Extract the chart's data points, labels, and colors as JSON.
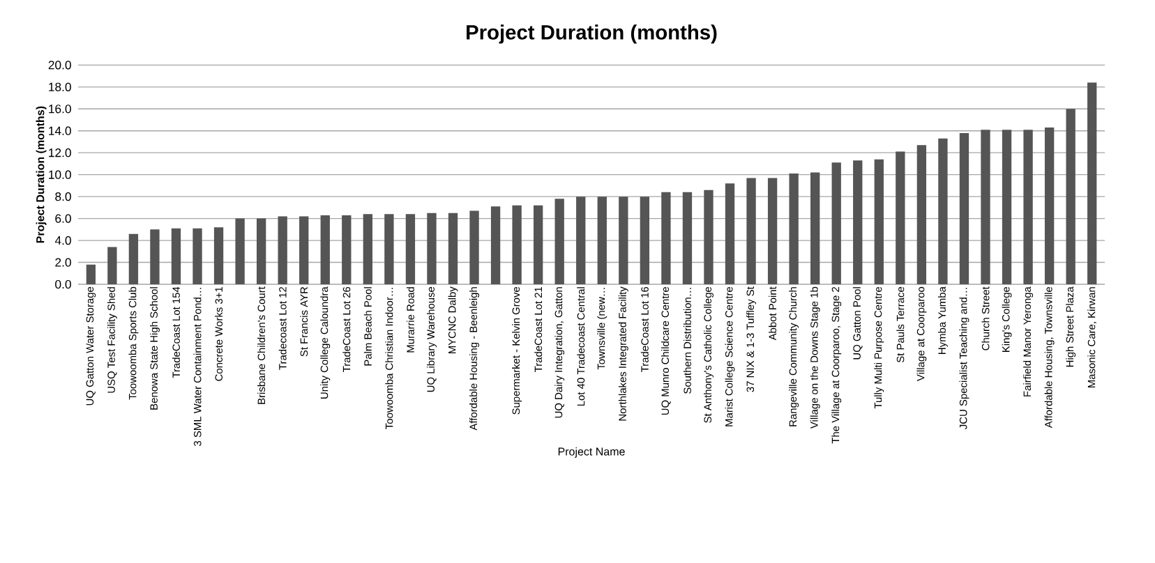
{
  "chart_data": {
    "type": "bar",
    "title": "Project Duration (months)",
    "xlabel": "Project Name",
    "ylabel": "Project Duration (months)",
    "categories": [
      "UQ Gatton Water Storage",
      "USQ Test Facility Shed",
      "Toowoomba Sports Club",
      "Benowa State High School",
      "TradeCoast Lot 154",
      "3 SML Water Containment Pond…",
      "Concrete Works 3+1",
      null,
      "Brisbane Children's Court",
      "Tradecoast Lot 12",
      "St Francis AYR",
      "Unity College Caloundra",
      "TradeCoast Lot 26",
      "Palm Beach Pool",
      "Toowoomba Christian Indoor…",
      "Murarrie Road",
      "UQ Library Warehouse",
      "MYCNC Dalby",
      "Affordable Housing - Beenleigh",
      null,
      "Supermarket - Kelvin Grove",
      "TradeCoast Lot 21",
      "UQ Dairy Integration, Gatton",
      "Lot 40 Tradecoast Central",
      "Townsville (new…",
      "Northlakes Integrated Facility",
      "TradeCoast Lot 16",
      "UQ Munro Childcare Centre",
      "Southern Distribution…",
      "St Anthony's Catholic College",
      "Marist College Science Centre",
      "37 NIX & 1-3 Tuffley St",
      "Abbot Point",
      "Rangeville Community Church",
      "Village on the Downs Stage 1b",
      "The Village at Coorparoo, Stage 2",
      "UQ Gatton Pool",
      "Tully Multi Purpose Centre",
      "St Pauls Terrace",
      "Village at Coorparoo",
      "Hymba Yumba",
      "JCU Specialist Teaching and…",
      "Church Street",
      "King's College",
      "Fairfield Manor Yeronga",
      "Affordable Housing, Townsville",
      "High Street Plaza",
      "Masonic Care, Kirwan"
    ],
    "values": [
      1.8,
      3.4,
      4.6,
      5.0,
      5.1,
      5.1,
      5.2,
      6.0,
      6.0,
      6.2,
      6.2,
      6.3,
      6.3,
      6.4,
      6.4,
      6.4,
      6.5,
      6.5,
      6.7,
      7.1,
      7.2,
      7.2,
      7.8,
      8.0,
      8.0,
      8.0,
      8.0,
      8.4,
      8.4,
      8.6,
      9.2,
      9.7,
      9.7,
      10.1,
      10.2,
      11.1,
      11.3,
      11.4,
      12.1,
      12.7,
      13.3,
      13.8,
      14.1,
      14.1,
      14.1,
      14.3,
      16.0,
      18.4
    ],
    "color": "#555555",
    "ylim": [
      0,
      20
    ],
    "yticks": [
      {
        "value": 0,
        "label": "0.0"
      },
      {
        "value": 2,
        "label": "2.0"
      },
      {
        "value": 4,
        "label": "4.0"
      },
      {
        "value": 6,
        "label": "6.0"
      },
      {
        "value": 8,
        "label": "8.0"
      },
      {
        "value": 10,
        "label": "10.0"
      },
      {
        "value": 12,
        "label": "12.0"
      },
      {
        "value": 14,
        "label": "14.0"
      },
      {
        "value": 16,
        "label": "16.0"
      },
      {
        "value": 18,
        "label": "18.0"
      },
      {
        "value": 20,
        "label": "20.0"
      }
    ],
    "grid": "y"
  }
}
